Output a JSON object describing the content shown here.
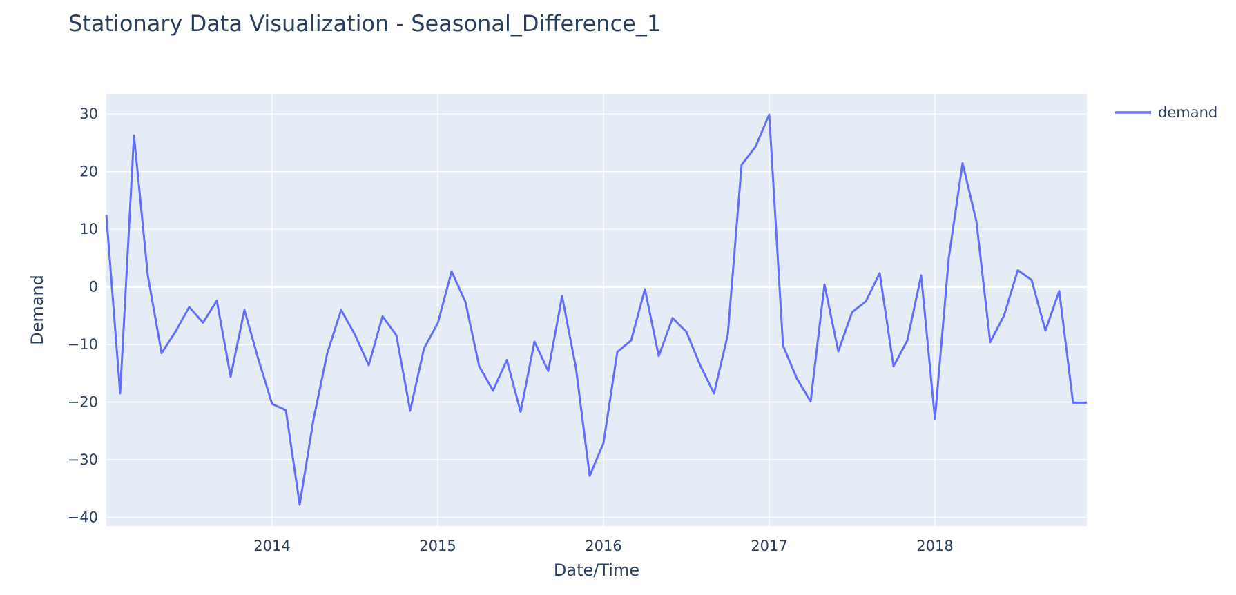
{
  "chart_data": {
    "type": "line",
    "title": "Stationary Data Visualization - Seasonal_Difference_1",
    "xlabel": "Date/Time",
    "ylabel": "Demand",
    "ylim": [
      -41.5,
      33.5
    ],
    "xlim": [
      "2013-01-01",
      "2018-12-01"
    ],
    "x_ticks": [
      "2014",
      "2015",
      "2016",
      "2017",
      "2018"
    ],
    "y_ticks": [
      30,
      20,
      10,
      0,
      -10,
      -20,
      -30,
      -40
    ],
    "y_tick_labels": [
      "30",
      "20",
      "10",
      "0",
      "−10",
      "−20",
      "−30",
      "−40"
    ],
    "grid": true,
    "legend_position": "top-right",
    "series": [
      {
        "name": "demand",
        "color": "#636efa",
        "x": [
          "2013-01",
          "2013-02",
          "2013-03",
          "2013-04",
          "2013-05",
          "2013-06",
          "2013-07",
          "2013-08",
          "2013-09",
          "2013-10",
          "2013-11",
          "2013-12",
          "2014-01",
          "2014-02",
          "2014-03",
          "2014-04",
          "2014-05",
          "2014-06",
          "2014-07",
          "2014-08",
          "2014-09",
          "2014-10",
          "2014-11",
          "2014-12",
          "2015-01",
          "2015-02",
          "2015-03",
          "2015-04",
          "2015-05",
          "2015-06",
          "2015-07",
          "2015-08",
          "2015-09",
          "2015-10",
          "2015-11",
          "2015-12",
          "2016-01",
          "2016-02",
          "2016-03",
          "2016-04",
          "2016-05",
          "2016-06",
          "2016-07",
          "2016-08",
          "2016-09",
          "2016-10",
          "2016-11",
          "2016-12",
          "2017-01",
          "2017-02",
          "2017-03",
          "2017-04",
          "2017-05",
          "2017-06",
          "2017-07",
          "2017-08",
          "2017-09",
          "2017-10",
          "2017-11",
          "2017-12",
          "2018-01",
          "2018-02",
          "2018-03",
          "2018-04",
          "2018-05",
          "2018-06",
          "2018-07",
          "2018-08",
          "2018-09",
          "2018-10",
          "2018-11",
          "2018-12"
        ],
        "y": [
          12.5,
          -18.5,
          26.3,
          2.0,
          -11.5,
          -7.8,
          -3.5,
          -6.2,
          -2.4,
          -15.6,
          -4.0,
          -12.5,
          -20.3,
          -21.4,
          -37.8,
          -23.0,
          -11.5,
          -4.0,
          -8.3,
          -13.6,
          -5.1,
          -8.4,
          -21.5,
          -10.7,
          -6.3,
          2.7,
          -2.6,
          -13.8,
          -18.0,
          -12.7,
          -21.7,
          -9.5,
          -14.6,
          -1.6,
          -14.0,
          -32.8,
          -27.1,
          -11.3,
          -9.3,
          -0.4,
          -12.0,
          -5.4,
          -7.8,
          -13.6,
          -18.5,
          -8.3,
          21.2,
          24.3,
          29.9,
          -10.2,
          -15.9,
          -19.9,
          0.4,
          -11.2,
          -4.4,
          -2.5,
          2.4,
          -13.8,
          -9.3,
          2.0,
          -22.9,
          5.0,
          21.5,
          11.4,
          -9.6,
          -5.0,
          2.9,
          1.2,
          -7.6,
          -0.7,
          -20.1,
          -20.1
        ]
      }
    ]
  }
}
